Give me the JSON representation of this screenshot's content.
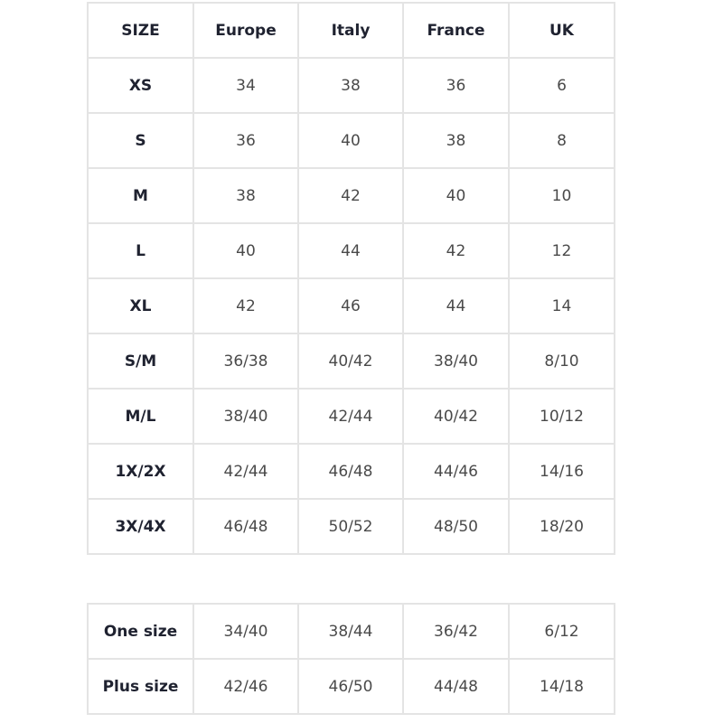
{
  "size_table": {
    "headers": [
      "SIZE",
      "Europe",
      "Italy",
      "France",
      "UK"
    ],
    "rows": [
      [
        "XS",
        "34",
        "38",
        "36",
        "6"
      ],
      [
        "S",
        "36",
        "40",
        "38",
        "8"
      ],
      [
        "M",
        "38",
        "42",
        "40",
        "10"
      ],
      [
        "L",
        "40",
        "44",
        "42",
        "12"
      ],
      [
        "XL",
        "42",
        "46",
        "44",
        "14"
      ],
      [
        "S/M",
        "36/38",
        "40/42",
        "38/40",
        "8/10"
      ],
      [
        "M/L",
        "38/40",
        "42/44",
        "40/42",
        "10/12"
      ],
      [
        "1X/2X",
        "42/44",
        "46/48",
        "44/46",
        "14/16"
      ],
      [
        "3X/4X",
        "46/48",
        "50/52",
        "48/50",
        "18/20"
      ]
    ]
  },
  "special_table": {
    "rows": [
      [
        "One size",
        "34/40",
        "38/44",
        "36/42",
        "6/12"
      ],
      [
        "Plus size",
        "42/46",
        "46/50",
        "44/48",
        "14/18"
      ]
    ]
  }
}
